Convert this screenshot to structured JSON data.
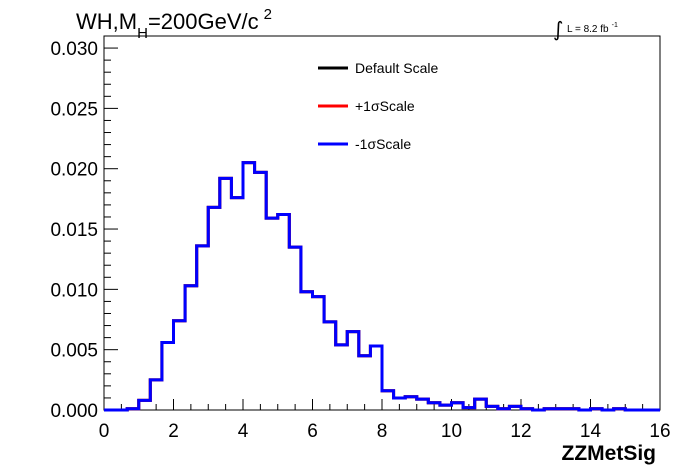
{
  "chart_data": {
    "type": "line",
    "title": {
      "main": "WH,M",
      "sub": "H",
      "rest": "=200GeV/c",
      "sup": "2"
    },
    "luminosity": {
      "integral_symbol": "∫",
      "text": "L = 8.2 fb",
      "sup": "-1"
    },
    "xlabel": "ZZMetSig",
    "ylabel": "",
    "xlim": [
      0,
      16
    ],
    "ylim": [
      0,
      0.031
    ],
    "x_ticks": [
      "0",
      "2",
      "4",
      "6",
      "8",
      "10",
      "12",
      "14",
      "16"
    ],
    "y_ticks": [
      "0.000",
      "0.005",
      "0.010",
      "0.015",
      "0.020",
      "0.025",
      "0.030"
    ],
    "grid": false,
    "legend_position": "top-center",
    "bin_edges": [
      0,
      0.333,
      0.667,
      1.0,
      1.333,
      1.667,
      2.0,
      2.333,
      2.667,
      3.0,
      3.333,
      3.667,
      4.0,
      4.333,
      4.667,
      5.0,
      5.333,
      5.667,
      6.0,
      6.333,
      6.667,
      7.0,
      7.333,
      7.667,
      8.0,
      8.333,
      8.667,
      9.0,
      9.333,
      9.667,
      10.0,
      10.333,
      10.667,
      11.0,
      11.333,
      11.667,
      12.0,
      12.333,
      12.667,
      13.0,
      13.333,
      13.667,
      14.0,
      14.333,
      14.667,
      15.0,
      15.333,
      15.667,
      16.0
    ],
    "series": [
      {
        "name": "Default Scale",
        "color": "#000000",
        "values": [
          0,
          0,
          0.0001,
          0.0008,
          0.0025,
          0.0056,
          0.0074,
          0.0103,
          0.0136,
          0.0168,
          0.0192,
          0.0176,
          0.0205,
          0.0197,
          0.0159,
          0.0162,
          0.0135,
          0.0098,
          0.0094,
          0.0073,
          0.0054,
          0.0065,
          0.0045,
          0.0053,
          0.0016,
          0.001,
          0.0011,
          0.0009,
          0.0006,
          0.0004,
          0.0006,
          0.0002,
          0.0009,
          0.0003,
          0.0001,
          0.0003,
          0.0001,
          0.0,
          0.0001,
          0.0001,
          0.0001,
          0.0,
          0.0001,
          0.0,
          0.0001,
          0.0,
          0.0,
          0.0
        ]
      },
      {
        "name": "+1σScale",
        "color": "#ff0000",
        "values": [
          0,
          0,
          0.0001,
          0.0008,
          0.0025,
          0.0056,
          0.0074,
          0.0103,
          0.0136,
          0.0168,
          0.0192,
          0.0176,
          0.0205,
          0.0197,
          0.0159,
          0.0162,
          0.0135,
          0.0098,
          0.0094,
          0.0073,
          0.0054,
          0.0065,
          0.0045,
          0.0053,
          0.0016,
          0.001,
          0.0011,
          0.0009,
          0.0006,
          0.0004,
          0.0006,
          0.0002,
          0.0009,
          0.0003,
          0.0001,
          0.0003,
          0.0001,
          0.0,
          0.0001,
          0.0001,
          0.0001,
          0.0,
          0.0001,
          0.0,
          0.0001,
          0.0,
          0.0,
          0.0
        ]
      },
      {
        "name": "-1σScale",
        "color": "#0000ff",
        "values": [
          0,
          0,
          0.0001,
          0.0008,
          0.0025,
          0.0056,
          0.0074,
          0.0103,
          0.0136,
          0.0168,
          0.0192,
          0.0176,
          0.0205,
          0.0197,
          0.0159,
          0.0162,
          0.0135,
          0.0098,
          0.0094,
          0.0073,
          0.0054,
          0.0065,
          0.0045,
          0.0053,
          0.0016,
          0.001,
          0.0011,
          0.0009,
          0.0006,
          0.0004,
          0.0006,
          0.0002,
          0.0009,
          0.0003,
          0.0001,
          0.0003,
          0.0001,
          0.0,
          0.0001,
          0.0001,
          0.0001,
          0.0,
          0.0001,
          0.0,
          0.0001,
          0.0,
          0.0,
          0.0
        ]
      }
    ]
  }
}
